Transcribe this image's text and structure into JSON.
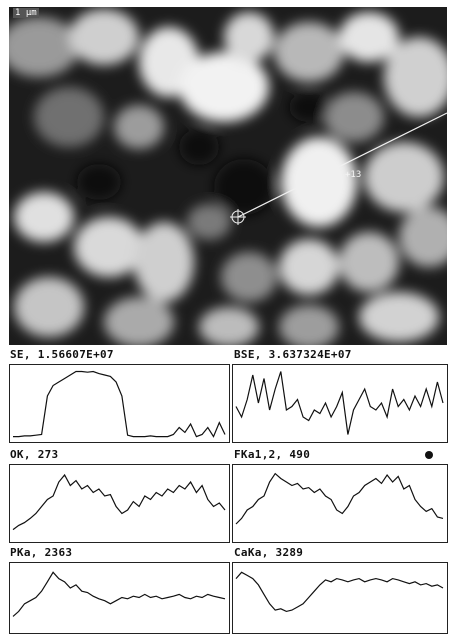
{
  "micrograph": {
    "scale_label": "1 µm",
    "distance_label": "+13"
  },
  "panels": [
    {
      "label": "SE, 1.56607E+07",
      "trace": [
        0.98,
        0.98,
        0.97,
        0.97,
        0.96,
        0.95,
        0.4,
        0.25,
        0.2,
        0.15,
        0.1,
        0.05,
        0.05,
        0.06,
        0.05,
        0.08,
        0.1,
        0.12,
        0.2,
        0.4,
        0.96,
        0.98,
        0.98,
        0.98,
        0.97,
        0.98,
        0.98,
        0.98,
        0.95,
        0.85,
        0.92,
        0.8,
        0.98,
        0.95,
        0.85,
        0.98,
        0.78,
        0.95
      ]
    },
    {
      "label": "BSE, 3.637324E+07",
      "trace": [
        0.55,
        0.7,
        0.45,
        0.1,
        0.5,
        0.15,
        0.6,
        0.3,
        0.05,
        0.6,
        0.55,
        0.45,
        0.7,
        0.75,
        0.6,
        0.65,
        0.5,
        0.7,
        0.55,
        0.35,
        0.95,
        0.6,
        0.45,
        0.3,
        0.55,
        0.6,
        0.5,
        0.7,
        0.3,
        0.55,
        0.45,
        0.6,
        0.4,
        0.55,
        0.3,
        0.55,
        0.2,
        0.5
      ]
    },
    {
      "label": "OK, 273",
      "trace": [
        0.88,
        0.82,
        0.78,
        0.72,
        0.65,
        0.55,
        0.45,
        0.4,
        0.2,
        0.1,
        0.25,
        0.18,
        0.3,
        0.25,
        0.35,
        0.3,
        0.4,
        0.38,
        0.55,
        0.65,
        0.6,
        0.48,
        0.55,
        0.4,
        0.45,
        0.35,
        0.4,
        0.3,
        0.35,
        0.25,
        0.3,
        0.2,
        0.35,
        0.25,
        0.45,
        0.55,
        0.5,
        0.6
      ]
    },
    {
      "label": "FKa1,2, 490",
      "trace": [
        0.8,
        0.72,
        0.6,
        0.55,
        0.45,
        0.4,
        0.2,
        0.08,
        0.15,
        0.2,
        0.25,
        0.22,
        0.3,
        0.28,
        0.35,
        0.3,
        0.4,
        0.45,
        0.6,
        0.65,
        0.55,
        0.4,
        0.35,
        0.25,
        0.2,
        0.15,
        0.22,
        0.1,
        0.2,
        0.12,
        0.3,
        0.25,
        0.45,
        0.55,
        0.62,
        0.58,
        0.7,
        0.72
      ]
    },
    {
      "label": "PKa, 2363",
      "trace": [
        0.8,
        0.72,
        0.6,
        0.55,
        0.5,
        0.4,
        0.25,
        0.1,
        0.2,
        0.25,
        0.35,
        0.3,
        0.4,
        0.42,
        0.48,
        0.52,
        0.55,
        0.6,
        0.55,
        0.5,
        0.52,
        0.48,
        0.5,
        0.45,
        0.5,
        0.48,
        0.52,
        0.5,
        0.48,
        0.45,
        0.5,
        0.52,
        0.48,
        0.5,
        0.45,
        0.48,
        0.5,
        0.52
      ]
    },
    {
      "label": "CaKa, 3289",
      "trace": [
        0.2,
        0.1,
        0.15,
        0.2,
        0.3,
        0.45,
        0.6,
        0.7,
        0.68,
        0.72,
        0.7,
        0.65,
        0.6,
        0.5,
        0.4,
        0.3,
        0.22,
        0.25,
        0.2,
        0.22,
        0.25,
        0.22,
        0.2,
        0.25,
        0.22,
        0.2,
        0.22,
        0.25,
        0.2,
        0.22,
        0.25,
        0.28,
        0.25,
        0.3,
        0.28,
        0.32,
        0.3,
        0.35
      ]
    }
  ]
}
